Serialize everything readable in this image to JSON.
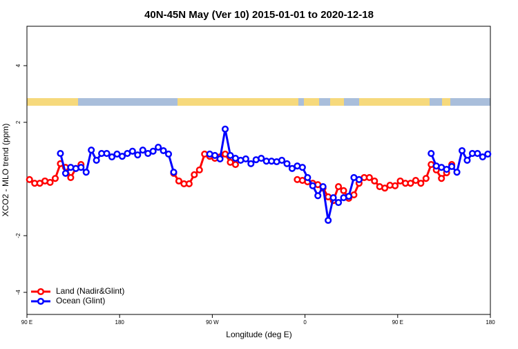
{
  "chart_data": {
    "type": "line",
    "title": "40N-45N May (Ver 10)   2015-01-01 to 2020-12-18",
    "x_label": "Longitude (deg E)",
    "y_label": "XCO2 - MLO trend (ppm)",
    "xlim": [
      90,
      540
    ],
    "ylim": [
      -4.78,
      5.39
    ],
    "xticks": [
      {
        "value": 90,
        "label": "90 E"
      },
      {
        "value": 180,
        "label": "180"
      },
      {
        "value": 270,
        "label": "90 W"
      },
      {
        "value": 360,
        "label": "0"
      },
      {
        "value": 450,
        "label": "90 E"
      },
      {
        "value": 540,
        "label": "180"
      }
    ],
    "yticks": [
      -4,
      -2,
      2,
      4
    ],
    "legend": "bottom-left",
    "x": [
      92.5,
      97.5,
      102.5,
      107.5,
      112.5,
      117.5,
      122.5,
      127.5,
      132.5,
      137.5,
      142.5,
      147.5,
      152.5,
      157.5,
      162.5,
      167.5,
      172.5,
      177.5,
      182.5,
      187.5,
      192.5,
      197.5,
      202.5,
      207.5,
      212.5,
      217.5,
      222.5,
      227.5,
      232.5,
      237.5,
      242.5,
      247.5,
      252.5,
      257.5,
      262.5,
      267.5,
      272.5,
      277.5,
      282.5,
      287.5,
      292.5,
      297.5,
      302.5,
      307.5,
      312.5,
      317.5,
      322.5,
      327.5,
      332.5,
      337.5,
      342.5,
      347.5,
      352.5,
      357.5,
      362.5,
      367.5,
      372.5,
      377.5,
      382.5,
      387.5,
      392.5,
      397.5,
      402.5,
      407.5,
      412.5,
      417.5,
      422.5,
      427.5,
      432.5,
      437.5,
      442.5,
      447.5,
      452.5,
      457.5,
      462.5,
      467.5,
      472.5,
      477.5,
      482.5,
      487.5,
      492.5,
      497.5,
      502.5,
      507.5,
      512.5,
      517.5,
      522.5,
      527.5,
      532.5,
      537.5
    ],
    "series": [
      {
        "name": "Land (Nadir&Glint)",
        "color": "#ff0000",
        "values": [
          -0.02,
          -0.15,
          -0.15,
          -0.07,
          -0.12,
          0.02,
          0.54,
          0.41,
          0.05,
          0.37,
          0.51,
          null,
          null,
          null,
          null,
          null,
          null,
          null,
          null,
          null,
          null,
          null,
          null,
          null,
          null,
          null,
          null,
          null,
          0.2,
          -0.07,
          -0.17,
          -0.17,
          0.15,
          0.32,
          0.88,
          0.8,
          0.73,
          0.78,
          0.88,
          0.59,
          0.51,
          null,
          null,
          null,
          null,
          null,
          null,
          null,
          null,
          null,
          null,
          null,
          -0.02,
          -0.05,
          -0.1,
          -0.15,
          -0.2,
          -0.32,
          -0.63,
          -0.76,
          -0.27,
          -0.41,
          -0.68,
          -0.56,
          -0.15,
          0.05,
          0.05,
          -0.07,
          -0.27,
          -0.32,
          -0.22,
          -0.24,
          -0.07,
          -0.15,
          -0.15,
          -0.05,
          -0.15,
          0.02,
          0.51,
          0.32,
          0.02,
          0.22,
          0.51,
          null,
          null,
          null,
          null,
          null,
          null,
          null
        ]
      },
      {
        "name": "Ocean (Glint)",
        "color": "#0000ff",
        "values": [
          null,
          null,
          null,
          null,
          null,
          null,
          0.9,
          0.2,
          0.41,
          0.37,
          0.41,
          0.24,
          1.02,
          0.66,
          0.9,
          0.9,
          0.78,
          0.88,
          0.8,
          0.9,
          0.98,
          0.85,
          1.02,
          0.9,
          0.98,
          1.12,
          1.0,
          0.88,
          0.24,
          null,
          null,
          null,
          null,
          null,
          null,
          0.88,
          0.83,
          0.71,
          1.76,
          0.83,
          0.73,
          0.66,
          0.71,
          0.54,
          0.68,
          0.73,
          0.63,
          0.63,
          0.61,
          0.66,
          0.54,
          0.37,
          0.46,
          0.41,
          0.05,
          -0.24,
          -0.59,
          -0.27,
          -1.46,
          -0.66,
          -0.83,
          -0.66,
          -0.61,
          0.05,
          -0.02,
          null,
          null,
          null,
          null,
          null,
          null,
          null,
          null,
          null,
          null,
          null,
          null,
          null,
          0.9,
          0.46,
          0.41,
          0.34,
          0.44,
          0.24,
          1.0,
          0.66,
          0.9,
          0.9,
          0.78,
          0.88
        ]
      }
    ]
  }
}
